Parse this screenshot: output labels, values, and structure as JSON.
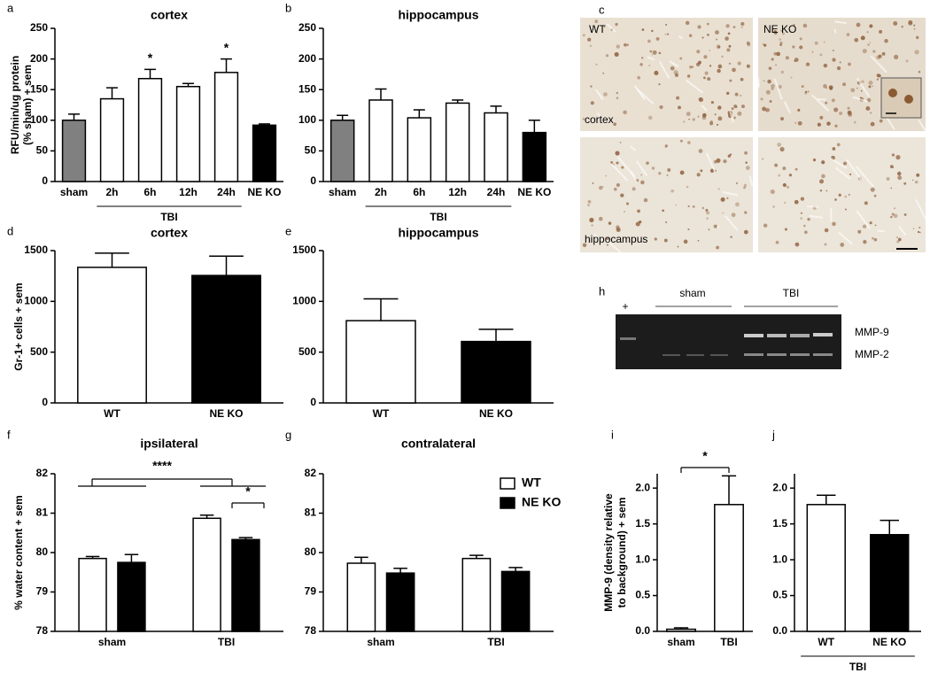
{
  "chart_data": [
    {
      "type": "bar",
      "panel": "a",
      "title": "cortex",
      "ylabel": [
        "RFU/min/ug protein",
        "(% sham) + sem"
      ],
      "categories": [
        "sham",
        "2h",
        "6h",
        "12h",
        "24h",
        "NE KO"
      ],
      "values": [
        100,
        135,
        168,
        155,
        178,
        92
      ],
      "errors": [
        10,
        18,
        15,
        5,
        22,
        2
      ],
      "colors": [
        "#808080",
        "#ffffff",
        "#ffffff",
        "#ffffff",
        "#ffffff",
        "#000000"
      ],
      "significance": [
        null,
        null,
        "*",
        null,
        "*",
        null
      ],
      "group_label": "TBI",
      "ylim": [
        0,
        250
      ],
      "yticks": [
        0,
        50,
        100,
        150,
        200,
        250
      ]
    },
    {
      "type": "bar",
      "panel": "b",
      "title": "hippocampus",
      "categories": [
        "sham",
        "2h",
        "6h",
        "12h",
        "24h",
        "NE KO"
      ],
      "values": [
        100,
        133,
        104,
        128,
        112,
        80
      ],
      "errors": [
        8,
        18,
        13,
        5,
        11,
        20
      ],
      "colors": [
        "#808080",
        "#ffffff",
        "#ffffff",
        "#ffffff",
        "#ffffff",
        "#000000"
      ],
      "group_label": "TBI",
      "ylim": [
        0,
        250
      ],
      "yticks": [
        0,
        50,
        100,
        150,
        200,
        250
      ]
    },
    {
      "type": "bar",
      "panel": "d",
      "title": "cortex",
      "ylabel": [
        "Gr-1+ cells + sem"
      ],
      "categories": [
        "WT",
        "NE KO"
      ],
      "values": [
        1335,
        1255
      ],
      "errors": [
        140,
        190
      ],
      "colors": [
        "#ffffff",
        "#000000"
      ],
      "ylim": [
        0,
        1500
      ],
      "yticks": [
        0,
        500,
        1000,
        1500
      ]
    },
    {
      "type": "bar",
      "panel": "e",
      "title": "hippocampus",
      "categories": [
        "WT",
        "NE KO"
      ],
      "values": [
        810,
        605
      ],
      "errors": [
        215,
        120
      ],
      "colors": [
        "#ffffff",
        "#000000"
      ],
      "ylim": [
        0,
        1500
      ],
      "yticks": [
        0,
        500,
        1000,
        1500
      ]
    },
    {
      "type": "bar",
      "panel": "f",
      "title": "ipsilateral",
      "ylabel": [
        "% water content + sem"
      ],
      "categories": [
        "sham",
        "TBI"
      ],
      "series": [
        {
          "name": "WT",
          "color": "#ffffff",
          "values": [
            79.85,
            80.87
          ],
          "errors": [
            0.05,
            0.08
          ]
        },
        {
          "name": "NE KO",
          "color": "#000000",
          "values": [
            79.75,
            80.33
          ],
          "errors": [
            0.2,
            0.05
          ]
        }
      ],
      "annotations": [
        "****",
        "*"
      ],
      "ylim": [
        78,
        82
      ],
      "yticks": [
        78,
        79,
        80,
        81,
        82
      ]
    },
    {
      "type": "bar",
      "panel": "g",
      "title": "contralateral",
      "categories": [
        "sham",
        "TBI"
      ],
      "series": [
        {
          "name": "WT",
          "color": "#ffffff",
          "values": [
            79.73,
            79.85
          ],
          "errors": [
            0.15,
            0.08
          ]
        },
        {
          "name": "NE KO",
          "color": "#000000",
          "values": [
            79.48,
            79.52
          ],
          "errors": [
            0.12,
            0.1
          ]
        }
      ],
      "legend": "upper right",
      "ylim": [
        78,
        82
      ],
      "yticks": [
        78,
        79,
        80,
        81,
        82
      ]
    },
    {
      "type": "bar",
      "panel": "i",
      "ylabel": [
        "MMP-9 (density relative",
        "to background) + sem"
      ],
      "categories": [
        "sham",
        "TBI"
      ],
      "values": [
        0.03,
        1.77
      ],
      "errors": [
        0.02,
        0.4
      ],
      "colors": [
        "#ffffff",
        "#ffffff"
      ],
      "annotations": [
        "*"
      ],
      "ylim": [
        0,
        2.2
      ],
      "yticks": [
        {
          "value": 0,
          "label": "0.0"
        },
        0.5,
        {
          "value": 1,
          "label": "1.0"
        },
        1.5,
        {
          "value": 2,
          "label": "2.0"
        }
      ]
    },
    {
      "type": "bar",
      "panel": "j",
      "categories": [
        "WT",
        "NE KO"
      ],
      "values": [
        1.77,
        1.35
      ],
      "errors": [
        0.13,
        0.2
      ],
      "colors": [
        "#ffffff",
        "#000000"
      ],
      "group_label": "TBI",
      "ylim": [
        0,
        2.2
      ],
      "yticks": [
        {
          "value": 0,
          "label": "0.0"
        },
        0.5,
        {
          "value": 1,
          "label": "1.0"
        },
        1.5,
        {
          "value": 2,
          "label": "2.0"
        }
      ]
    }
  ],
  "micrograph": {
    "panel": "c",
    "columns": [
      "WT",
      "NE KO"
    ],
    "rows": [
      "cortex",
      "hippocampus"
    ]
  },
  "gel": {
    "panel": "h",
    "positive": "+",
    "groups": [
      "sham",
      "TBI"
    ],
    "bands": [
      "MMP-9",
      "MMP-2"
    ]
  }
}
